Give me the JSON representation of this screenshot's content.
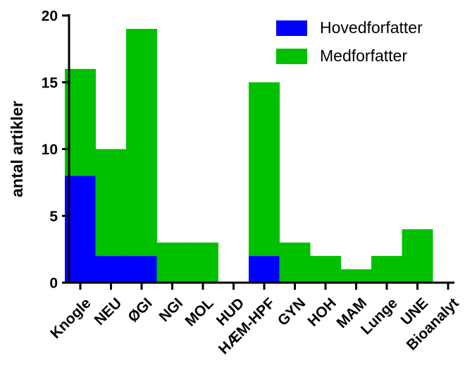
{
  "chart_data": {
    "type": "bar",
    "stacked": true,
    "categories": [
      "Knogle",
      "NEU",
      "ØGI",
      "NGI",
      "MOL",
      "HUD",
      "HÆM-HPF",
      "GYN",
      "HOH",
      "MAM",
      "Lunge",
      "UNE",
      "Bioanalyt"
    ],
    "series": [
      {
        "name": "Hovedforfatter",
        "color": "#0000ff",
        "values": [
          8,
          2,
          2,
          0,
          0,
          0,
          2,
          0,
          0,
          0,
          0,
          0,
          0
        ]
      },
      {
        "name": "Medforfatter",
        "color": "#00c000",
        "values": [
          8,
          8,
          17,
          3,
          3,
          0,
          13,
          3,
          2,
          1,
          2,
          4,
          0
        ]
      }
    ],
    "xlabel": "",
    "ylabel": "antal artikler",
    "ylim": [
      0,
      20
    ],
    "yticks": [
      0,
      5,
      10,
      15,
      20
    ],
    "grid": false,
    "legend_position": "top-right"
  }
}
